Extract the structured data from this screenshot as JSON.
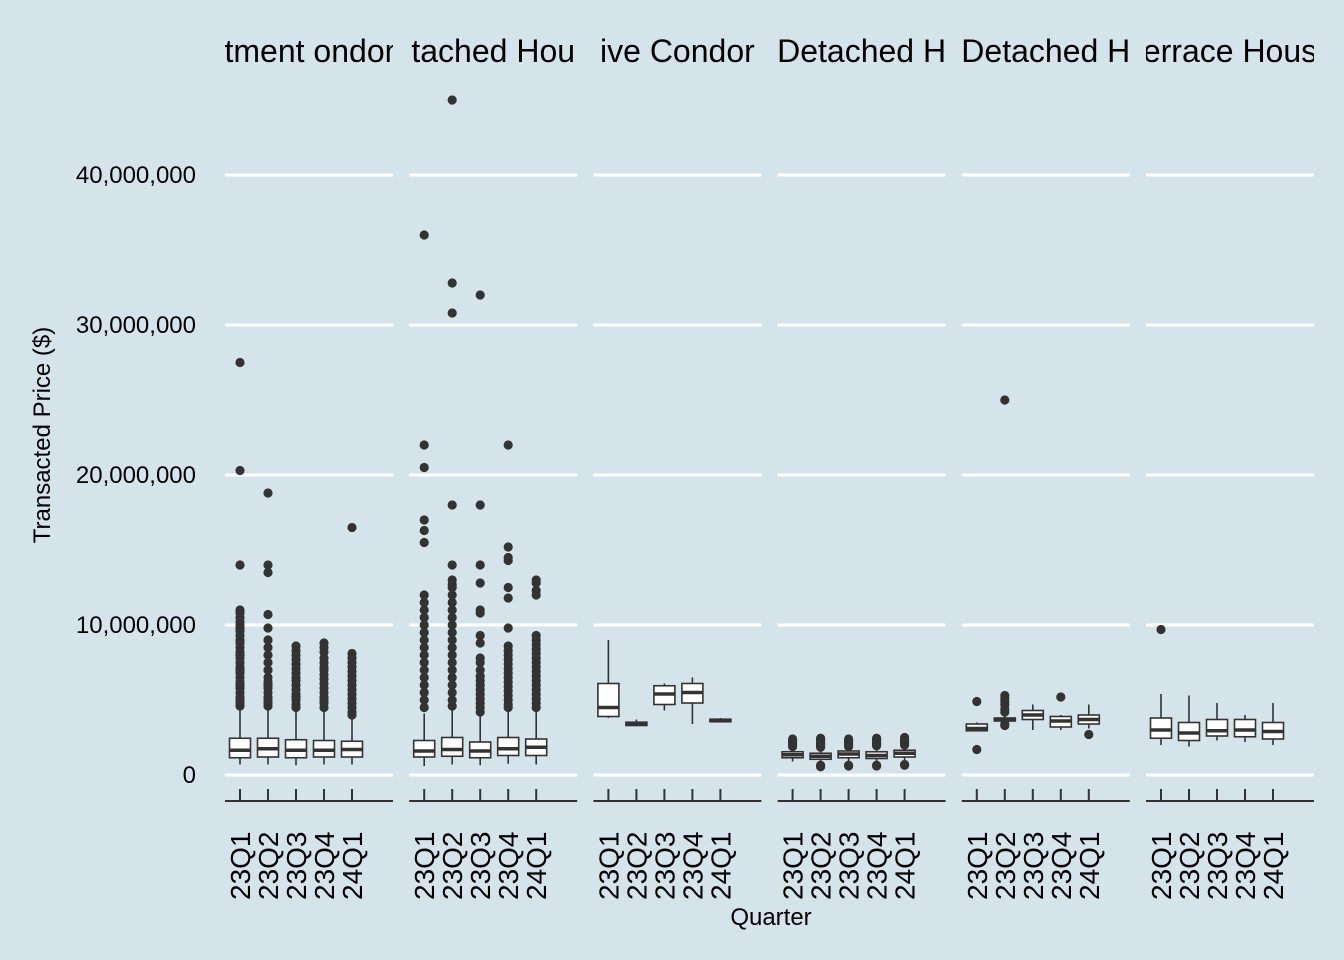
{
  "chart_data": {
    "type": "boxplot",
    "xlabel": "Quarter",
    "ylabel": "Transacted Price ($)",
    "ylim": [
      -1500000,
      47000000
    ],
    "yticks": [
      0,
      10000000,
      20000000,
      30000000,
      40000000
    ],
    "ytick_labels": [
      "0",
      "10,000,000",
      "20,000,000",
      "30,000,000",
      "40,000,000"
    ],
    "grid": "horizontal",
    "background": "#d5e4eb",
    "box_fill": "#ffffff",
    "line_color": "#333333",
    "categories": [
      "23Q1",
      "23Q2",
      "23Q3",
      "23Q4",
      "24Q1"
    ],
    "panels": [
      {
        "title": "Apartment ondominiu",
        "boxes": [
          {
            "min": 700000,
            "q1": 1150000,
            "median": 1650000,
            "q3": 2450000,
            "max": 4400000,
            "outliers": [
              27500000,
              20300000,
              14000000,
              11000000,
              10800000,
              10500000,
              10200000,
              10000000,
              9800000,
              9600000,
              9300000,
              9000000,
              8800000,
              8500000,
              8200000,
              8000000,
              7800000,
              7500000,
              7200000,
              7000000,
              6800000,
              6500000,
              6200000,
              6000000,
              5800000,
              5500000,
              5200000,
              5000000,
              4800000,
              4600000
            ]
          },
          {
            "min": 700000,
            "q1": 1200000,
            "median": 1750000,
            "q3": 2450000,
            "max": 4400000,
            "outliers": [
              18800000,
              14000000,
              13500000,
              10700000,
              9800000,
              9000000,
              8500000,
              8000000,
              7500000,
              7000000,
              6500000,
              6200000,
              6000000,
              5800000,
              5500000,
              5200000,
              5000000,
              4800000,
              4600000
            ]
          },
          {
            "min": 650000,
            "q1": 1150000,
            "median": 1650000,
            "q3": 2350000,
            "max": 4300000,
            "outliers": [
              8600000,
              8300000,
              8000000,
              7700000,
              7400000,
              7100000,
              6800000,
              6500000,
              6300000,
              6000000,
              5700000,
              5400000,
              5200000,
              5000000,
              4700000,
              4500000
            ]
          },
          {
            "min": 700000,
            "q1": 1200000,
            "median": 1650000,
            "q3": 2300000,
            "max": 4200000,
            "outliers": [
              8800000,
              8500000,
              8200000,
              7800000,
              7500000,
              7200000,
              7000000,
              6700000,
              6400000,
              6100000,
              5800000,
              5500000,
              5200000,
              5000000,
              4800000,
              4500000
            ]
          },
          {
            "min": 700000,
            "q1": 1200000,
            "median": 1700000,
            "q3": 2250000,
            "max": 3900000,
            "outliers": [
              16500000,
              8100000,
              7800000,
              7500000,
              7200000,
              6900000,
              6600000,
              6300000,
              6000000,
              5700000,
              5400000,
              5100000,
              4800000,
              4500000,
              4200000,
              4000000
            ]
          }
        ]
      },
      {
        "title": "tached Hou",
        "boxes": [
          {
            "min": 600000,
            "q1": 1200000,
            "median": 1600000,
            "q3": 2300000,
            "max": 4100000,
            "outliers": [
              36000000,
              22000000,
              20500000,
              17000000,
              16300000,
              15500000,
              12000000,
              11500000,
              11000000,
              10500000,
              10000000,
              9500000,
              9000000,
              8500000,
              8000000,
              7500000,
              7000000,
              6500000,
              6000000,
              5500000,
              5000000,
              4500000
            ]
          },
          {
            "min": 700000,
            "q1": 1250000,
            "median": 1700000,
            "q3": 2500000,
            "max": 4300000,
            "outliers": [
              45000000,
              32800000,
              30800000,
              18000000,
              14000000,
              13000000,
              12700000,
              12500000,
              12000000,
              11500000,
              11000000,
              10500000,
              10000000,
              9500000,
              9000000,
              8500000,
              8000000,
              7500000,
              7000000,
              6500000,
              6000000,
              5500000,
              5000000,
              4600000
            ]
          },
          {
            "min": 650000,
            "q1": 1150000,
            "median": 1600000,
            "q3": 2200000,
            "max": 3900000,
            "outliers": [
              32000000,
              18000000,
              14000000,
              12800000,
              11000000,
              10800000,
              9300000,
              8800000,
              7800000,
              7500000,
              7000000,
              6600000,
              6300000,
              6000000,
              5700000,
              5400000,
              5100000,
              4800000,
              4500000,
              4200000
            ]
          },
          {
            "min": 750000,
            "q1": 1300000,
            "median": 1750000,
            "q3": 2500000,
            "max": 4300000,
            "outliers": [
              22000000,
              15200000,
              14500000,
              14300000,
              12500000,
              11800000,
              9800000,
              8600000,
              8300000,
              8000000,
              7700000,
              7400000,
              7100000,
              6800000,
              6500000,
              6200000,
              5900000,
              5600000,
              5300000,
              5000000,
              4700000,
              4500000
            ]
          },
          {
            "min": 700000,
            "q1": 1300000,
            "median": 1850000,
            "q3": 2400000,
            "max": 4200000,
            "outliers": [
              13000000,
              12800000,
              12300000,
              12000000,
              9300000,
              9000000,
              8700000,
              8400000,
              8100000,
              7800000,
              7500000,
              7200000,
              6900000,
              6600000,
              6300000,
              6000000,
              5700000,
              5400000,
              5100000,
              4800000,
              4500000
            ]
          }
        ]
      },
      {
        "title": "ive Condor",
        "boxes": [
          {
            "min": 3800000,
            "q1": 3900000,
            "median": 4500000,
            "q3": 6100000,
            "max": 9000000,
            "outliers": []
          },
          {
            "min": 3250000,
            "q1": 3300000,
            "median": 3420000,
            "q3": 3520000,
            "max": 3700000,
            "outliers": []
          },
          {
            "min": 4300000,
            "q1": 4700000,
            "median": 5400000,
            "q3": 5950000,
            "max": 6100000,
            "outliers": []
          },
          {
            "min": 3400000,
            "q1": 4800000,
            "median": 5500000,
            "q3": 6100000,
            "max": 6500000,
            "outliers": []
          },
          {
            "min": 3500000,
            "q1": 3550000,
            "median": 3620000,
            "q3": 3720000,
            "max": 3800000,
            "outliers": []
          }
        ]
      },
      {
        "title": "Detached H",
        "boxes": [
          {
            "min": 900000,
            "q1": 1150000,
            "median": 1350000,
            "q3": 1550000,
            "max": 1750000,
            "outliers": [
              2400000,
              2300000,
              2200000,
              2100000,
              2000000,
              1900000
            ]
          },
          {
            "min": 800000,
            "q1": 1050000,
            "median": 1250000,
            "q3": 1450000,
            "max": 1700000,
            "outliers": [
              2450000,
              2350000,
              2250000,
              2150000,
              2050000,
              1950000,
              1850000,
              650000,
              550000
            ]
          },
          {
            "min": 900000,
            "q1": 1150000,
            "median": 1400000,
            "q3": 1600000,
            "max": 1800000,
            "outliers": [
              2400000,
              2300000,
              2200000,
              2100000,
              2000000,
              1900000,
              650000,
              600000
            ]
          },
          {
            "min": 900000,
            "q1": 1100000,
            "median": 1300000,
            "q3": 1550000,
            "max": 1800000,
            "outliers": [
              2450000,
              2350000,
              2250000,
              2150000,
              2050000,
              1950000,
              650000,
              600000
            ]
          },
          {
            "min": 950000,
            "q1": 1200000,
            "median": 1450000,
            "q3": 1650000,
            "max": 1850000,
            "outliers": [
              2500000,
              2400000,
              2300000,
              2200000,
              2100000,
              2000000,
              700000,
              650000
            ]
          }
        ]
      },
      {
        "title": "Detached H",
        "boxes": [
          {
            "min": 2900000,
            "q1": 2950000,
            "median": 3100000,
            "q3": 3400000,
            "max": 3500000,
            "outliers": [
              4900000,
              1700000
            ]
          },
          {
            "min": 3400000,
            "q1": 3600000,
            "median": 3700000,
            "q3": 3800000,
            "max": 3900000,
            "outliers": [
              25000000,
              5300000,
              5100000,
              4900000,
              4700000,
              4400000,
              4200000,
              3400000,
              3300000
            ]
          },
          {
            "min": 3000000,
            "q1": 3700000,
            "median": 4000000,
            "q3": 4300000,
            "max": 4700000,
            "outliers": []
          },
          {
            "min": 3000000,
            "q1": 3200000,
            "median": 3600000,
            "q3": 3900000,
            "max": 4000000,
            "outliers": [
              5200000
            ]
          },
          {
            "min": 3100000,
            "q1": 3400000,
            "median": 3700000,
            "q3": 4000000,
            "max": 4700000,
            "outliers": [
              2700000
            ]
          }
        ]
      },
      {
        "title": "errace Hous",
        "boxes": [
          {
            "min": 2000000,
            "q1": 2450000,
            "median": 3000000,
            "q3": 3800000,
            "max": 5400000,
            "outliers": [
              9700000
            ]
          },
          {
            "min": 1900000,
            "q1": 2300000,
            "median": 2800000,
            "q3": 3500000,
            "max": 5300000,
            "outliers": []
          },
          {
            "min": 2300000,
            "q1": 2600000,
            "median": 2950000,
            "q3": 3700000,
            "max": 4800000,
            "outliers": []
          },
          {
            "min": 2200000,
            "q1": 2550000,
            "median": 3000000,
            "q3": 3700000,
            "max": 4000000,
            "outliers": []
          },
          {
            "min": 2000000,
            "q1": 2400000,
            "median": 2900000,
            "q3": 3500000,
            "max": 4800000,
            "outliers": []
          }
        ]
      }
    ]
  }
}
